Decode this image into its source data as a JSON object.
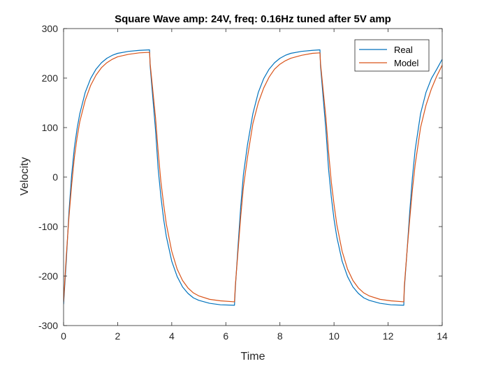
{
  "chart_data": {
    "type": "line",
    "title": "Square Wave amp: 24V, freq: 0.16Hz tuned after 5V amp",
    "xlabel": "Time",
    "ylabel": "Velocity",
    "xlim": [
      0,
      14
    ],
    "ylim": [
      -300,
      300
    ],
    "xticks": [
      0,
      2,
      4,
      6,
      8,
      10,
      12,
      14
    ],
    "yticks": [
      -300,
      -200,
      -100,
      0,
      100,
      200,
      300
    ],
    "grid": false,
    "legend_position": "top-right",
    "series": [
      {
        "name": "Real",
        "color": "#0072BD",
        "points": [
          [
            0,
            -257
          ],
          [
            0.1,
            -170
          ],
          [
            0.2,
            -70
          ],
          [
            0.3,
            5
          ],
          [
            0.4,
            60
          ],
          [
            0.5,
            98
          ],
          [
            0.6,
            128
          ],
          [
            0.8,
            171
          ],
          [
            1.0,
            199
          ],
          [
            1.2,
            218
          ],
          [
            1.4,
            231
          ],
          [
            1.6,
            240
          ],
          [
            1.8,
            246
          ],
          [
            2.0,
            250
          ],
          [
            2.4,
            254
          ],
          [
            2.8,
            256
          ],
          [
            3.18,
            257
          ],
          [
            3.2,
            225
          ],
          [
            3.3,
            160
          ],
          [
            3.4,
            95
          ],
          [
            3.5,
            15
          ],
          [
            3.6,
            -40
          ],
          [
            3.7,
            -85
          ],
          [
            3.8,
            -120
          ],
          [
            4.0,
            -170
          ],
          [
            4.2,
            -201
          ],
          [
            4.4,
            -222
          ],
          [
            4.6,
            -235
          ],
          [
            4.8,
            -244
          ],
          [
            5.0,
            -249
          ],
          [
            5.4,
            -255
          ],
          [
            5.8,
            -258
          ],
          [
            6.32,
            -259
          ],
          [
            6.35,
            -225
          ],
          [
            6.45,
            -140
          ],
          [
            6.55,
            -60
          ],
          [
            6.65,
            5
          ],
          [
            6.8,
            65
          ],
          [
            7.0,
            128
          ],
          [
            7.2,
            171
          ],
          [
            7.4,
            199
          ],
          [
            7.6,
            218
          ],
          [
            7.8,
            231
          ],
          [
            8.0,
            240
          ],
          [
            8.2,
            246
          ],
          [
            8.4,
            250
          ],
          [
            8.8,
            254
          ],
          [
            9.2,
            256
          ],
          [
            9.48,
            257
          ],
          [
            9.5,
            225
          ],
          [
            9.6,
            160
          ],
          [
            9.7,
            95
          ],
          [
            9.8,
            15
          ],
          [
            9.9,
            -40
          ],
          [
            10.0,
            -85
          ],
          [
            10.1,
            -120
          ],
          [
            10.3,
            -170
          ],
          [
            10.5,
            -201
          ],
          [
            10.7,
            -222
          ],
          [
            10.9,
            -235
          ],
          [
            11.1,
            -244
          ],
          [
            11.3,
            -249
          ],
          [
            11.7,
            -255
          ],
          [
            12.1,
            -258
          ],
          [
            12.58,
            -259
          ],
          [
            12.6,
            -225
          ],
          [
            12.7,
            -150
          ],
          [
            12.8,
            -70
          ],
          [
            12.9,
            0
          ],
          [
            13.0,
            55
          ],
          [
            13.2,
            128
          ],
          [
            13.4,
            171
          ],
          [
            13.6,
            199
          ],
          [
            13.8,
            218
          ],
          [
            14.0,
            238
          ]
        ]
      },
      {
        "name": "Model",
        "color": "#D95319",
        "points": [
          [
            0,
            -252
          ],
          [
            0.1,
            -160
          ],
          [
            0.2,
            -80
          ],
          [
            0.3,
            -15
          ],
          [
            0.4,
            40
          ],
          [
            0.5,
            80
          ],
          [
            0.6,
            112
          ],
          [
            0.8,
            155
          ],
          [
            1.0,
            185
          ],
          [
            1.2,
            206
          ],
          [
            1.4,
            221
          ],
          [
            1.6,
            231
          ],
          [
            1.8,
            238
          ],
          [
            2.0,
            243
          ],
          [
            2.4,
            248
          ],
          [
            2.8,
            251
          ],
          [
            3.18,
            252
          ],
          [
            3.2,
            230
          ],
          [
            3.3,
            175
          ],
          [
            3.4,
            120
          ],
          [
            3.5,
            50
          ],
          [
            3.6,
            -10
          ],
          [
            3.7,
            -55
          ],
          [
            3.8,
            -95
          ],
          [
            4.0,
            -150
          ],
          [
            4.2,
            -186
          ],
          [
            4.4,
            -209
          ],
          [
            4.6,
            -224
          ],
          [
            4.8,
            -234
          ],
          [
            5.0,
            -240
          ],
          [
            5.4,
            -247
          ],
          [
            5.8,
            -250
          ],
          [
            6.32,
            -252
          ],
          [
            6.35,
            -220
          ],
          [
            6.45,
            -150
          ],
          [
            6.55,
            -80
          ],
          [
            6.65,
            -20
          ],
          [
            6.8,
            40
          ],
          [
            7.0,
            108
          ],
          [
            7.2,
            150
          ],
          [
            7.4,
            180
          ],
          [
            7.6,
            202
          ],
          [
            7.8,
            218
          ],
          [
            8.0,
            228
          ],
          [
            8.2,
            235
          ],
          [
            8.4,
            240
          ],
          [
            8.8,
            246
          ],
          [
            9.2,
            250
          ],
          [
            9.48,
            251
          ],
          [
            9.5,
            230
          ],
          [
            9.6,
            175
          ],
          [
            9.7,
            120
          ],
          [
            9.8,
            50
          ],
          [
            9.9,
            -10
          ],
          [
            10.0,
            -55
          ],
          [
            10.1,
            -95
          ],
          [
            10.3,
            -150
          ],
          [
            10.5,
            -186
          ],
          [
            10.7,
            -209
          ],
          [
            10.9,
            -224
          ],
          [
            11.1,
            -234
          ],
          [
            11.3,
            -240
          ],
          [
            11.7,
            -247
          ],
          [
            12.1,
            -250
          ],
          [
            12.58,
            -252
          ],
          [
            12.6,
            -220
          ],
          [
            12.7,
            -150
          ],
          [
            12.8,
            -85
          ],
          [
            12.9,
            -25
          ],
          [
            13.0,
            25
          ],
          [
            13.2,
            100
          ],
          [
            13.4,
            145
          ],
          [
            13.6,
            178
          ],
          [
            13.8,
            204
          ],
          [
            14.0,
            226
          ]
        ]
      }
    ]
  }
}
